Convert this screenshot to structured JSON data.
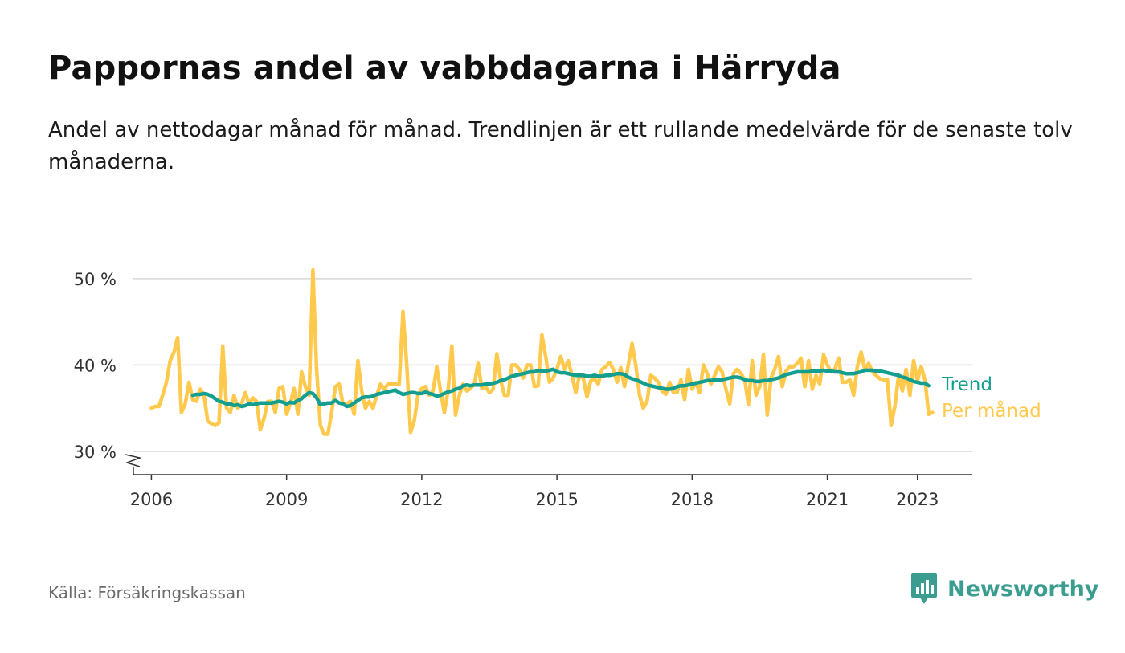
{
  "header": {
    "title": "Pappornas andel av vabbdagarna i Härryda",
    "subtitle": "Andel av nettodagar månad för månad. Trendlinjen är ett rullande medelvärde för de senaste tolv månaderna."
  },
  "footer": {
    "source": "Källa: Försäkringskassan",
    "brand": "Newsworthy",
    "brand_icon": "bar-chart-speech-bubble-icon"
  },
  "chart_data": {
    "type": "line",
    "title": "Pappornas andel av vabbdagarna i Härryda",
    "xlabel": "",
    "ylabel": "",
    "ylim": [
      27.3,
      52.5
    ],
    "xlim": [
      2005.6,
      2024.2
    ],
    "y_ticks": [
      30,
      40,
      50
    ],
    "y_tick_labels": [
      "30 %",
      "40 %",
      "50 %"
    ],
    "x_ticks": [
      2006,
      2009,
      2012,
      2015,
      2018,
      2021,
      2023
    ],
    "x_tick_labels": [
      "2006",
      "2009",
      "2012",
      "2015",
      "2018",
      "2021",
      "2023"
    ],
    "grid": "horizontal",
    "broken_axis": true,
    "legend": "direct-labels-right",
    "colors": {
      "monthly": "#FFC94D",
      "trend": "#139E8F"
    },
    "series": [
      {
        "name": "Per månad",
        "x_start": 2006.0,
        "step_months": 1,
        "values": [
          35.0,
          35.2,
          35.2,
          36.5,
          38.0,
          40.5,
          41.5,
          43.2,
          34.5,
          35.5,
          38.0,
          36.0,
          35.8,
          37.2,
          36.5,
          33.5,
          33.2,
          33.0,
          33.3,
          42.2,
          35.0,
          34.5,
          36.5,
          35.0,
          35.5,
          36.8,
          35.5,
          36.2,
          35.8,
          32.5,
          33.8,
          35.8,
          35.8,
          34.5,
          37.3,
          37.5,
          34.3,
          35.5,
          37.3,
          34.3,
          39.2,
          37.5,
          36.5,
          51.0,
          39.5,
          33.0,
          32.0,
          32.0,
          34.5,
          37.5,
          37.8,
          35.5,
          35.5,
          35.8,
          34.3,
          40.5,
          37.0,
          35.0,
          35.8,
          35.0,
          36.5,
          37.8,
          37.2,
          37.8,
          37.8,
          37.8,
          37.8,
          46.2,
          40.0,
          32.2,
          33.5,
          36.5,
          37.3,
          37.5,
          36.5,
          37.0,
          39.8,
          37.0,
          34.5,
          37.0,
          42.2,
          34.2,
          36.5,
          37.8,
          37.0,
          37.3,
          37.8,
          40.2,
          37.3,
          37.5,
          36.8,
          37.2,
          41.3,
          38.3,
          36.5,
          36.5,
          40.0,
          40.0,
          39.5,
          38.5,
          40.0,
          40.0,
          37.5,
          37.6,
          43.5,
          41.0,
          38.0,
          38.5,
          39.5,
          41.0,
          39.5,
          40.5,
          38.8,
          36.8,
          38.8,
          38.5,
          36.3,
          38.2,
          38.4,
          37.8,
          39.5,
          39.8,
          40.3,
          39.5,
          38.0,
          39.7,
          37.5,
          40.0,
          42.5,
          40.0,
          36.5,
          35.0,
          35.8,
          38.8,
          38.5,
          38.0,
          37.0,
          36.6,
          38.0,
          36.8,
          36.8,
          38.3,
          36.0,
          39.5,
          37.2,
          38.0,
          36.8,
          40.0,
          39.0,
          37.8,
          38.8,
          39.8,
          39.2,
          37.2,
          35.5,
          39.0,
          39.5,
          39.0,
          38.3,
          35.4,
          40.5,
          36.5,
          37.5,
          41.2,
          34.2,
          38.5,
          39.5,
          41.0,
          37.5,
          39.3,
          39.8,
          39.8,
          40.2,
          40.8,
          37.5,
          40.5,
          37.2,
          38.8,
          37.8,
          41.2,
          40.0,
          39.2,
          39.5,
          40.8,
          38.0,
          38.0,
          38.3,
          36.5,
          39.8,
          41.5,
          39.5,
          40.2,
          39.2,
          38.8,
          38.4,
          38.3,
          38.3,
          33.0,
          35.3,
          38.8,
          37.0,
          39.5,
          36.5,
          40.5,
          38.2,
          39.8,
          38.3,
          34.3,
          34.5
        ]
      },
      {
        "name": "Trend",
        "x_start": 2006.9167,
        "step_months": 1,
        "values": [
          36.5,
          36.6,
          36.6,
          36.7,
          36.6,
          36.4,
          36.1,
          35.8,
          35.7,
          35.5,
          35.5,
          35.3,
          35.4,
          35.2,
          35.3,
          35.5,
          35.4,
          35.5,
          35.6,
          35.6,
          35.6,
          35.6,
          35.7,
          35.8,
          35.7,
          35.5,
          35.7,
          35.6,
          35.9,
          36.1,
          36.5,
          36.8,
          36.7,
          36.2,
          35.4,
          35.5,
          35.6,
          35.6,
          35.9,
          35.6,
          35.5,
          35.2,
          35.3,
          35.6,
          35.9,
          36.2,
          36.3,
          36.3,
          36.4,
          36.6,
          36.7,
          36.8,
          36.9,
          37.0,
          37.1,
          36.8,
          36.6,
          36.7,
          36.8,
          36.8,
          36.7,
          36.7,
          36.9,
          36.7,
          36.6,
          36.4,
          36.5,
          36.7,
          36.9,
          37.0,
          37.2,
          37.3,
          37.6,
          37.7,
          37.6,
          37.7,
          37.7,
          37.7,
          37.8,
          37.8,
          37.9,
          38.0,
          38.2,
          38.3,
          38.5,
          38.7,
          38.8,
          38.9,
          39.0,
          39.1,
          39.2,
          39.2,
          39.4,
          39.3,
          39.3,
          39.4,
          39.5,
          39.2,
          39.1,
          39.1,
          39.0,
          38.9,
          38.8,
          38.8,
          38.8,
          38.7,
          38.7,
          38.8,
          38.7,
          38.7,
          38.8,
          38.8,
          38.9,
          39.0,
          39.0,
          38.9,
          38.6,
          38.4,
          38.3,
          38.1,
          37.9,
          37.7,
          37.6,
          37.5,
          37.4,
          37.3,
          37.2,
          37.2,
          37.3,
          37.5,
          37.6,
          37.6,
          37.7,
          37.8,
          37.9,
          38.0,
          38.1,
          38.2,
          38.2,
          38.3,
          38.3,
          38.3,
          38.4,
          38.5,
          38.6,
          38.6,
          38.5,
          38.3,
          38.2,
          38.2,
          38.1,
          38.1,
          38.2,
          38.2,
          38.3,
          38.4,
          38.5,
          38.7,
          38.9,
          39.0,
          39.1,
          39.2,
          39.2,
          39.2,
          39.2,
          39.3,
          39.3,
          39.3,
          39.4,
          39.3,
          39.3,
          39.2,
          39.2,
          39.1,
          39.0,
          39.0,
          39.0,
          39.1,
          39.2,
          39.4,
          39.4,
          39.4,
          39.3,
          39.3,
          39.2,
          39.1,
          39.0,
          38.9,
          38.8,
          38.6,
          38.5,
          38.3,
          38.1,
          38.0,
          37.9,
          37.9,
          37.6
        ]
      }
    ]
  }
}
